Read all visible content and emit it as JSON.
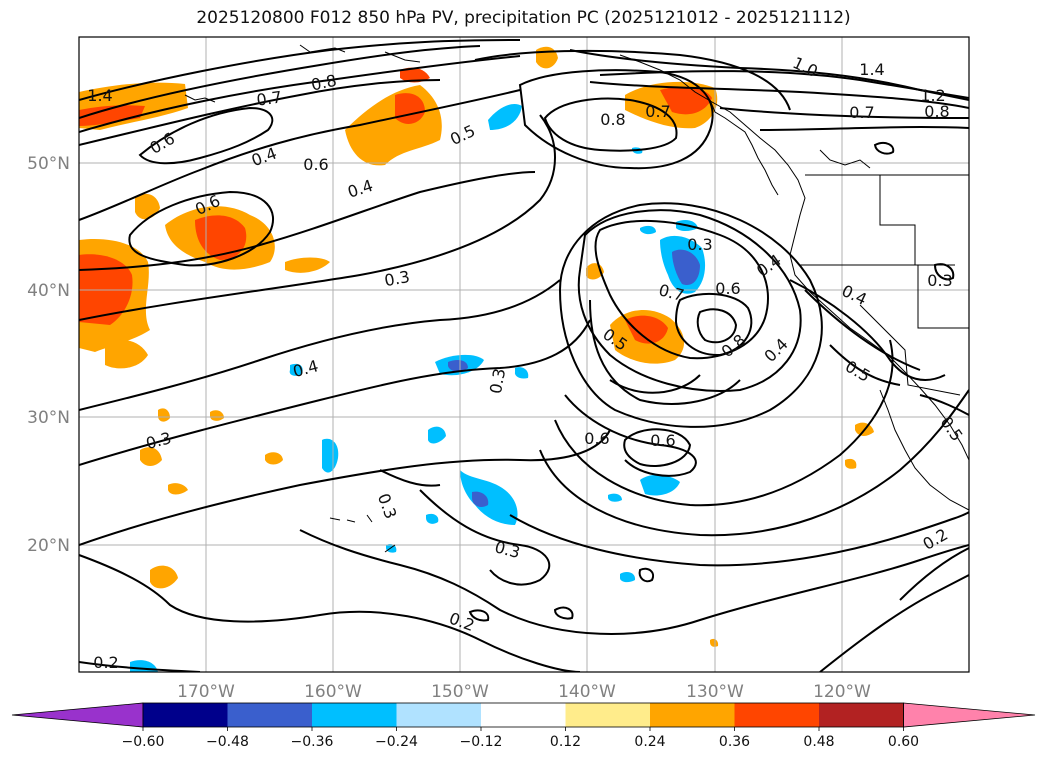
{
  "title": "2025120800 F012 850 hPa PV, precipitation PC (2025121012 - 2025121112)",
  "lat_labels": [
    "50°N",
    "40°N",
    "30°N",
    "20°N"
  ],
  "lon_labels": [
    "170°W",
    "160°W",
    "150°W",
    "140°W",
    "130°W",
    "120°W"
  ],
  "contour_labels": [
    "1.4",
    "0.6",
    "0.8",
    "0.7",
    "0.4",
    "0.6",
    "0.6",
    "0.4",
    "0.5",
    "0.8",
    "0.7",
    "1.0",
    "1.4",
    "1.2",
    "0.7",
    "0.8",
    "0.3",
    "0.3",
    "0.7",
    "0.6",
    "0.4",
    "0.4",
    "0.3",
    "0.4",
    "0.3",
    "0.5",
    "0.8",
    "0.4",
    "0.5",
    "0.3",
    "0.6",
    "0.6",
    "0.5",
    "0.3",
    "0.3",
    "0.2",
    "0.2",
    "0.2"
  ],
  "colorbar": {
    "ticks": [
      "−0.60",
      "−0.48",
      "−0.36",
      "−0.24",
      "−0.12",
      "0.12",
      "0.24",
      "0.36",
      "0.48",
      "0.60"
    ],
    "colors": [
      "#9932cc",
      "#00008b",
      "#3a5fcd",
      "#00bfff",
      "#b0e2ff",
      "#ffffff",
      "#ffec8b",
      "#ffa500",
      "#ff4500",
      "#b22222",
      "#ff82ab"
    ]
  }
}
